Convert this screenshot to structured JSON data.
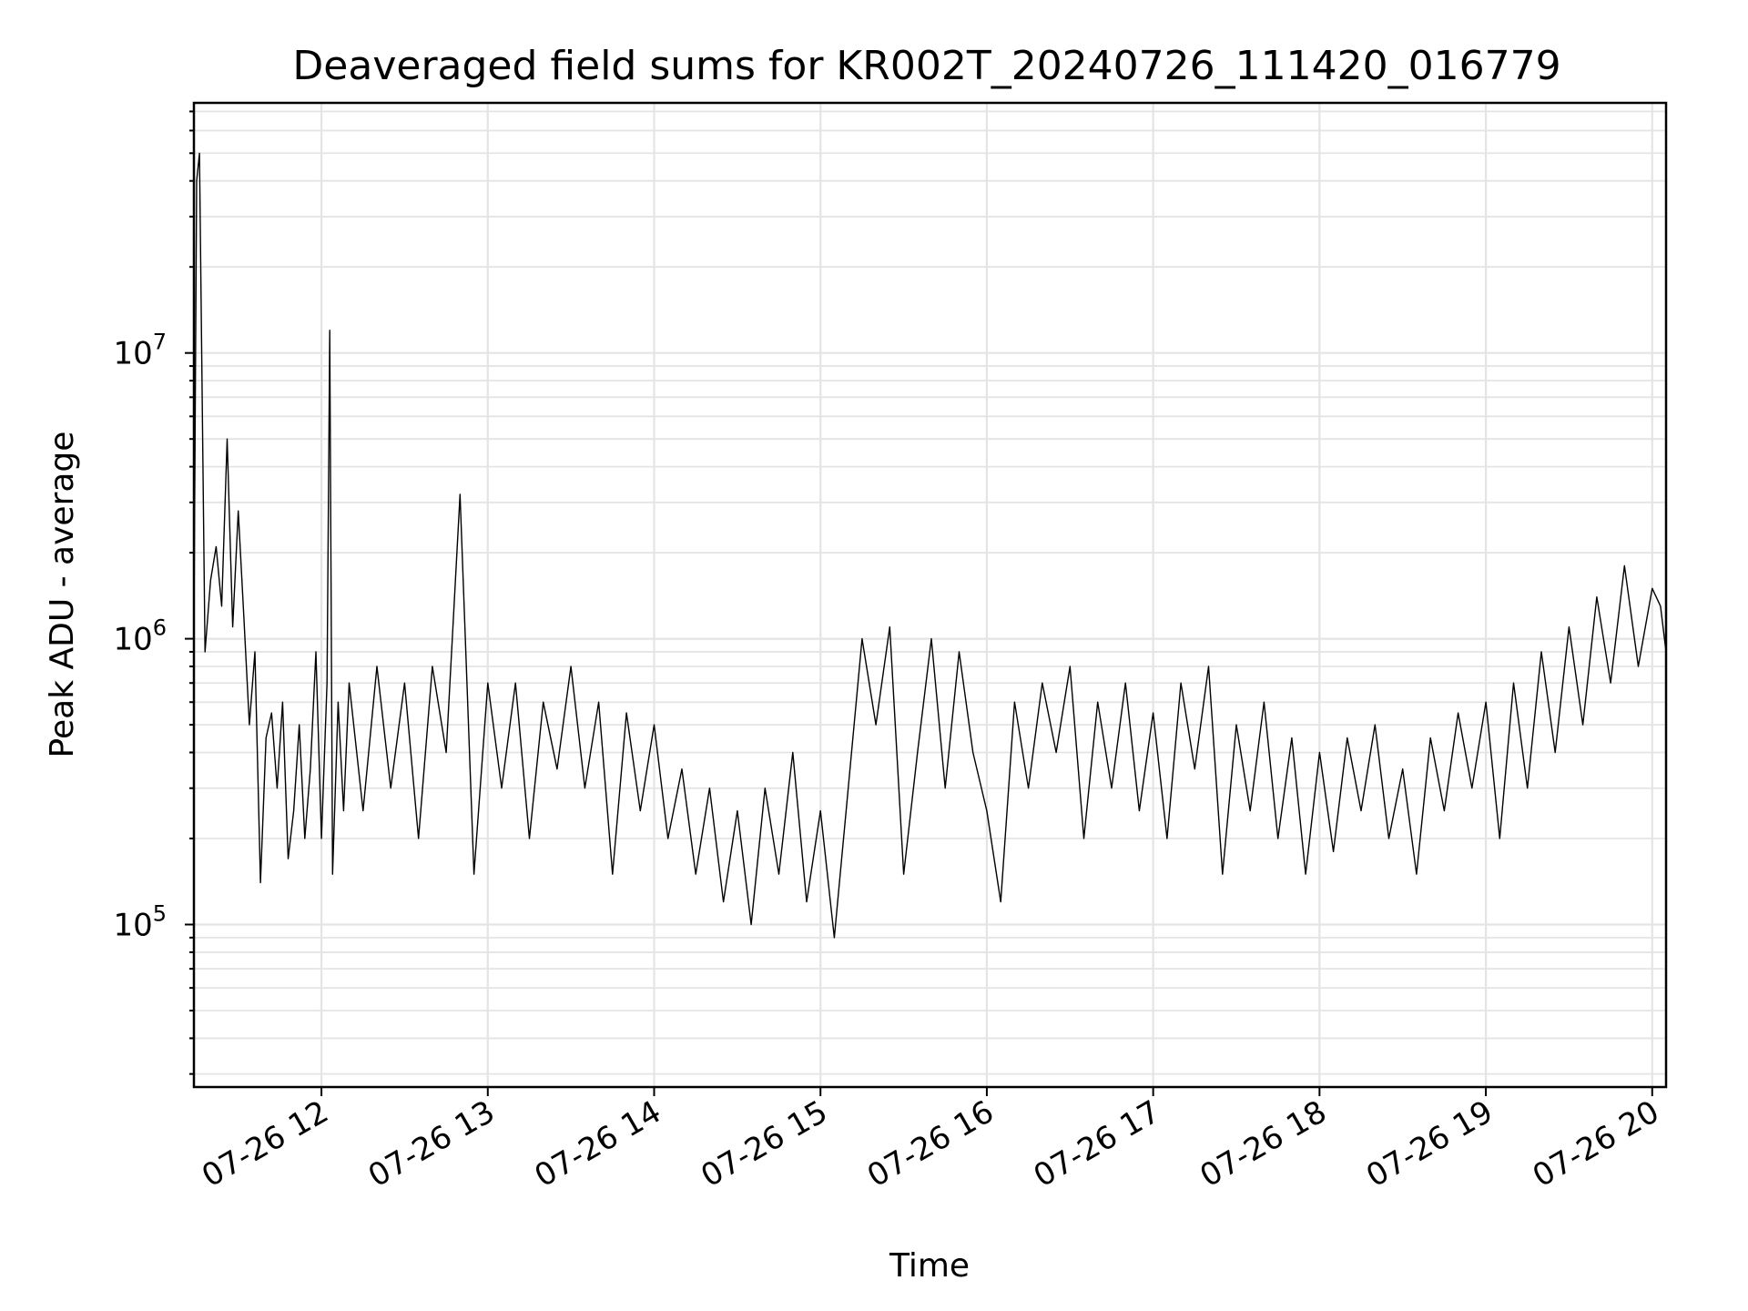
{
  "chart_data": {
    "type": "line",
    "title": "Deaveraged field sums for KR002T_20240726_111420_016779",
    "xlabel": "Time",
    "ylabel": "Peak ADU - average",
    "yscale": "log",
    "xlim": [
      "2024-07-26 11:14",
      "2024-07-26 20:05"
    ],
    "ylim": [
      27000,
      75000000
    ],
    "grid": "major and minor",
    "x_ticks": [
      {
        "value": "2024-07-26 12:00",
        "label": "07-26 12"
      },
      {
        "value": "2024-07-26 13:00",
        "label": "07-26 13"
      },
      {
        "value": "2024-07-26 14:00",
        "label": "07-26 14"
      },
      {
        "value": "2024-07-26 15:00",
        "label": "07-26 15"
      },
      {
        "value": "2024-07-26 16:00",
        "label": "07-26 16"
      },
      {
        "value": "2024-07-26 17:00",
        "label": "07-26 17"
      },
      {
        "value": "2024-07-26 18:00",
        "label": "07-26 18"
      },
      {
        "value": "2024-07-26 19:00",
        "label": "07-26 19"
      },
      {
        "value": "2024-07-26 20:00",
        "label": "07-26 20"
      }
    ],
    "y_ticks": [
      {
        "value": 100000,
        "base": "10",
        "exp": "5"
      },
      {
        "value": 1000000,
        "base": "10",
        "exp": "6"
      },
      {
        "value": 10000000,
        "base": "10",
        "exp": "7"
      }
    ],
    "line_color": "#000000",
    "series": [
      {
        "x": [
          "2024-07-26 11:14",
          "2024-07-26 11:15",
          "2024-07-26 11:16",
          "2024-07-26 11:18",
          "2024-07-26 11:20",
          "2024-07-26 11:22",
          "2024-07-26 11:24",
          "2024-07-26 11:26",
          "2024-07-26 11:28",
          "2024-07-26 11:30",
          "2024-07-26 11:32",
          "2024-07-26 11:34",
          "2024-07-26 11:36",
          "2024-07-26 11:38",
          "2024-07-26 11:40",
          "2024-07-26 11:42",
          "2024-07-26 11:44",
          "2024-07-26 11:46",
          "2024-07-26 11:48",
          "2024-07-26 11:50",
          "2024-07-26 11:52",
          "2024-07-26 11:54",
          "2024-07-26 11:56",
          "2024-07-26 11:58",
          "2024-07-26 12:00",
          "2024-07-26 12:02",
          "2024-07-26 12:03",
          "2024-07-26 12:04",
          "2024-07-26 12:06",
          "2024-07-26 12:08",
          "2024-07-26 12:10",
          "2024-07-26 12:15",
          "2024-07-26 12:20",
          "2024-07-26 12:25",
          "2024-07-26 12:30",
          "2024-07-26 12:35",
          "2024-07-26 12:40",
          "2024-07-26 12:45",
          "2024-07-26 12:50",
          "2024-07-26 12:55",
          "2024-07-26 13:00",
          "2024-07-26 13:05",
          "2024-07-26 13:10",
          "2024-07-26 13:15",
          "2024-07-26 13:20",
          "2024-07-26 13:25",
          "2024-07-26 13:30",
          "2024-07-26 13:35",
          "2024-07-26 13:40",
          "2024-07-26 13:45",
          "2024-07-26 13:50",
          "2024-07-26 13:55",
          "2024-07-26 14:00",
          "2024-07-26 14:05",
          "2024-07-26 14:10",
          "2024-07-26 14:15",
          "2024-07-26 14:20",
          "2024-07-26 14:25",
          "2024-07-26 14:30",
          "2024-07-26 14:35",
          "2024-07-26 14:40",
          "2024-07-26 14:45",
          "2024-07-26 14:50",
          "2024-07-26 14:55",
          "2024-07-26 15:00",
          "2024-07-26 15:05",
          "2024-07-26 15:10",
          "2024-07-26 15:15",
          "2024-07-26 15:20",
          "2024-07-26 15:25",
          "2024-07-26 15:30",
          "2024-07-26 15:35",
          "2024-07-26 15:40",
          "2024-07-26 15:45",
          "2024-07-26 15:50",
          "2024-07-26 15:55",
          "2024-07-26 16:00",
          "2024-07-26 16:05",
          "2024-07-26 16:10",
          "2024-07-26 16:15",
          "2024-07-26 16:20",
          "2024-07-26 16:25",
          "2024-07-26 16:30",
          "2024-07-26 16:35",
          "2024-07-26 16:40",
          "2024-07-26 16:45",
          "2024-07-26 16:50",
          "2024-07-26 16:55",
          "2024-07-26 17:00",
          "2024-07-26 17:05",
          "2024-07-26 17:10",
          "2024-07-26 17:15",
          "2024-07-26 17:20",
          "2024-07-26 17:25",
          "2024-07-26 17:30",
          "2024-07-26 17:35",
          "2024-07-26 17:40",
          "2024-07-26 17:45",
          "2024-07-26 17:50",
          "2024-07-26 17:55",
          "2024-07-26 18:00",
          "2024-07-26 18:05",
          "2024-07-26 18:10",
          "2024-07-26 18:15",
          "2024-07-26 18:20",
          "2024-07-26 18:25",
          "2024-07-26 18:30",
          "2024-07-26 18:35",
          "2024-07-26 18:40",
          "2024-07-26 18:45",
          "2024-07-26 18:50",
          "2024-07-26 18:55",
          "2024-07-26 19:00",
          "2024-07-26 19:05",
          "2024-07-26 19:10",
          "2024-07-26 19:15",
          "2024-07-26 19:20",
          "2024-07-26 19:25",
          "2024-07-26 19:30",
          "2024-07-26 19:35",
          "2024-07-26 19:40",
          "2024-07-26 19:45",
          "2024-07-26 19:50",
          "2024-07-26 19:55",
          "2024-07-26 20:00",
          "2024-07-26 20:03",
          "2024-07-26 20:05"
        ],
        "y": [
          1100000,
          40000000,
          50000000,
          900000,
          1600000,
          2100000,
          1300000,
          5000000,
          1100000,
          2800000,
          1200000,
          500000,
          900000,
          140000,
          450000,
          550000,
          300000,
          600000,
          170000,
          250000,
          500000,
          200000,
          350000,
          900000,
          200000,
          700000,
          12000000,
          150000,
          600000,
          250000,
          700000,
          250000,
          800000,
          300000,
          700000,
          200000,
          800000,
          400000,
          3200000,
          150000,
          700000,
          300000,
          700000,
          200000,
          600000,
          350000,
          800000,
          300000,
          600000,
          150000,
          550000,
          250000,
          500000,
          200000,
          350000,
          150000,
          300000,
          120000,
          250000,
          100000,
          300000,
          150000,
          400000,
          120000,
          250000,
          90000,
          300000,
          1000000,
          500000,
          1100000,
          150000,
          400000,
          1000000,
          300000,
          900000,
          400000,
          250000,
          120000,
          600000,
          300000,
          700000,
          400000,
          800000,
          200000,
          600000,
          300000,
          700000,
          250000,
          550000,
          200000,
          700000,
          350000,
          800000,
          150000,
          500000,
          250000,
          600000,
          200000,
          450000,
          150000,
          400000,
          180000,
          450000,
          250000,
          500000,
          200000,
          350000,
          150000,
          450000,
          250000,
          550000,
          300000,
          600000,
          200000,
          700000,
          300000,
          900000,
          400000,
          1100000,
          500000,
          1400000,
          700000,
          1800000,
          800000,
          1500000,
          1300000,
          900000
        ]
      }
    ]
  }
}
